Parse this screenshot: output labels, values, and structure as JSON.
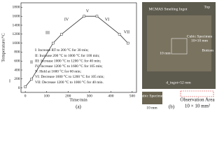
{
  "chart_data": {
    "type": "line",
    "x_label": "Time/min",
    "y_label": "Temperature/°C",
    "x": [
      0,
      30,
      130,
      170,
      275,
      335,
      440,
      480
    ],
    "series": [
      {
        "color": "#333333",
        "values": [
          25,
          200,
          1000,
          1200,
          1600,
          1600,
          1200,
          1000
        ]
      }
    ],
    "xlim": [
      -20,
      520
    ],
    "xticks": [
      0,
      100,
      200,
      300,
      400,
      500
    ],
    "ylim": [
      -100,
      1900
    ],
    "yticks": [
      0,
      200,
      400,
      600,
      800,
      1000,
      1200,
      1400,
      1600,
      1800
    ],
    "stage_labels": [
      "I",
      "II",
      "III",
      "IV",
      "V",
      "VI",
      "VII"
    ],
    "legend_lines": [
      "I: Increase RT to 200 °C for 30 min;",
      "II: Increase 200 °C to 1000 °C for 100 min;",
      "III: Increase 1000 °C to 1200 °C for 40 min;",
      "IV: Increase 1200 °C to 1600 °C for 105 min;",
      "V: Hold at 1600 °C for 60 min;",
      "VI: Decrease 1600 °C to 1200 °C for 105 min;",
      "VII: Decrease 1200 °C to 1000 °C for 40 min."
    ],
    "caption": "(a)"
  },
  "photo": {
    "title": "MCMAS Smelting Ingot",
    "top": "Top",
    "bottom": "Bottom",
    "specimen": "Cubic Specimen",
    "specimen_size": "10×10 mm",
    "edge": "10 mm",
    "diameter": "d_ingot=52 mm",
    "cube_label": "Cubic Specimen",
    "cube_edge": "10 mm",
    "observation": "Observation Area",
    "observation_size": "10 × 10 mm²",
    "caption": "(b)"
  }
}
